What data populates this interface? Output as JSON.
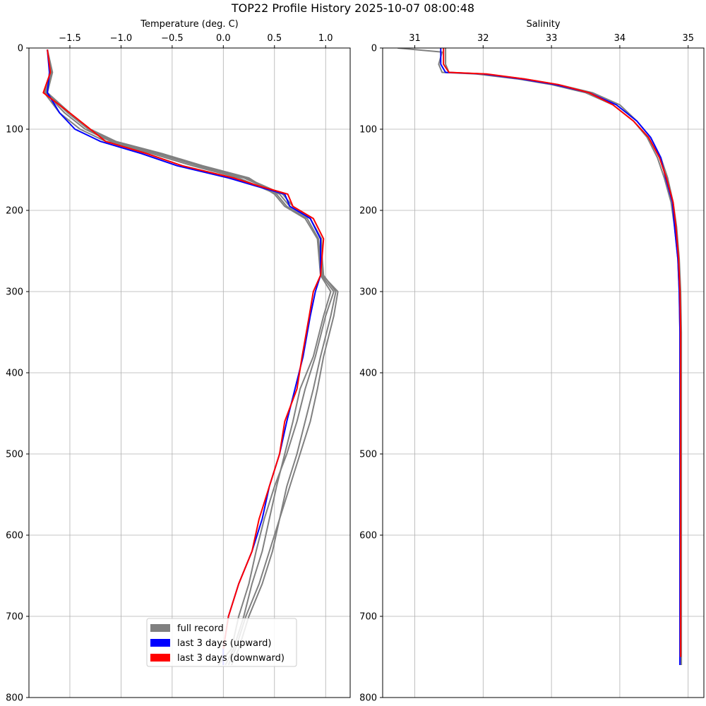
{
  "chart_data": {
    "type": "line",
    "title": "TOP22 Profile History 2025-10-07 08:00:48",
    "legend_placement": "lower-center of left panel",
    "legend": [
      {
        "label": "full record",
        "color": "#808080"
      },
      {
        "label": "last 3 days (upward)",
        "color": "#0000ff"
      },
      {
        "label": "last 3 days (downward)",
        "color": "#ff0000"
      }
    ],
    "panels": [
      {
        "name": "temperature",
        "xlabel": "Temperature (deg. C)",
        "xlim": [
          -1.9,
          1.24
        ],
        "ylim": [
          800,
          0
        ],
        "xticks": [
          -1.5,
          -1.0,
          -0.5,
          0.0,
          0.5,
          1.0
        ],
        "xtick_labels": [
          "−1.5",
          "−1.0",
          "−0.5",
          "0.0",
          "0.5",
          "1.0"
        ],
        "yticks": [
          0,
          100,
          200,
          300,
          400,
          500,
          600,
          700,
          800
        ],
        "ytick_labels": [
          "0",
          "100",
          "200",
          "300",
          "400",
          "500",
          "600",
          "700",
          "800"
        ],
        "grid": true,
        "series": [
          {
            "kind": "full",
            "color": "#808080",
            "x": [
              -1.72,
              -1.68,
              -1.74,
              -1.55,
              -1.35,
              -1.1,
              -0.65,
              -0.25,
              0.2,
              0.55,
              0.65,
              0.85,
              0.95,
              0.98,
              1.1,
              1.05,
              0.95,
              0.88,
              0.8,
              0.72,
              0.62,
              0.55,
              0.45,
              0.35,
              0.22,
              0.12,
              0.05
            ],
            "y": [
              2,
              30,
              55,
              80,
              100,
              115,
              130,
              145,
              160,
              180,
              195,
              210,
              235,
              280,
              300,
              330,
              380,
              420,
              460,
              500,
              540,
              580,
              620,
              660,
              700,
              740,
              760
            ]
          },
          {
            "kind": "full",
            "color": "#808080",
            "x": [
              -1.72,
              -1.67,
              -1.72,
              -1.5,
              -1.3,
              -1.05,
              -0.6,
              -0.2,
              0.25,
              0.5,
              0.6,
              0.8,
              0.92,
              0.95,
              1.05,
              0.98,
              0.88,
              0.75,
              0.68,
              0.6,
              0.52,
              0.45,
              0.38,
              0.28,
              0.2,
              0.1,
              0.02
            ],
            "y": [
              2,
              30,
              55,
              80,
              100,
              115,
              130,
              145,
              160,
              180,
              195,
              210,
              235,
              280,
              300,
              330,
              380,
              420,
              460,
              500,
              540,
              580,
              620,
              660,
              700,
              740,
              760
            ]
          },
          {
            "kind": "full",
            "color": "#808080",
            "x": [
              -1.72,
              -1.69,
              -1.75,
              -1.6,
              -1.4,
              -1.15,
              -0.7,
              -0.3,
              0.15,
              0.52,
              0.62,
              0.82,
              0.93,
              0.96,
              1.08,
              1.0,
              0.9,
              0.8,
              0.72,
              0.62,
              0.5,
              0.4,
              0.32,
              0.25,
              0.15,
              0.08,
              -0.05
            ],
            "y": [
              2,
              30,
              55,
              80,
              100,
              115,
              130,
              145,
              160,
              180,
              195,
              210,
              235,
              280,
              300,
              330,
              380,
              420,
              460,
              500,
              540,
              580,
              620,
              660,
              700,
              740,
              760
            ]
          },
          {
            "kind": "full",
            "color": "#808080",
            "x": [
              -1.72,
              -1.68,
              -1.73,
              -1.52,
              -1.32,
              -1.08,
              -0.62,
              -0.22,
              0.22,
              0.58,
              0.68,
              0.85,
              0.96,
              0.97,
              1.12,
              1.08,
              0.98,
              0.92,
              0.85,
              0.75,
              0.65,
              0.55,
              0.48,
              0.38,
              0.25,
              0.15,
              0.08
            ],
            "y": [
              2,
              30,
              55,
              80,
              100,
              115,
              130,
              145,
              160,
              180,
              195,
              210,
              235,
              280,
              300,
              330,
              380,
              420,
              460,
              500,
              540,
              580,
              620,
              660,
              700,
              740,
              760
            ]
          },
          {
            "kind": "up",
            "color": "#0000ff",
            "x": [
              -1.72,
              -1.7,
              -1.72,
              -1.6,
              -1.45,
              -1.2,
              -0.8,
              -0.45,
              0.05,
              0.32,
              0.6,
              0.65,
              0.85,
              0.95,
              0.95,
              0.9,
              0.85,
              0.78,
              0.7,
              0.62,
              0.55,
              0.45,
              0.38,
              0.28,
              0.15,
              0.05,
              0.0,
              0.0
            ],
            "y": [
              2,
              30,
              55,
              80,
              100,
              115,
              130,
              145,
              160,
              170,
              180,
              195,
              210,
              235,
              280,
              300,
              330,
              380,
              420,
              460,
              500,
              540,
              580,
              620,
              660,
              700,
              740,
              760
            ]
          },
          {
            "kind": "down",
            "color": "#ff0000",
            "x": [
              -1.72,
              -1.69,
              -1.76,
              -1.5,
              -1.3,
              -1.15,
              -0.75,
              -0.4,
              0.1,
              0.35,
              0.63,
              0.68,
              0.88,
              0.98,
              0.95,
              0.88,
              0.84,
              0.77,
              0.72,
              0.6,
              0.55,
              0.45,
              0.35,
              0.28,
              0.15,
              0.05,
              0.0
            ],
            "y": [
              2,
              30,
              55,
              80,
              100,
              115,
              130,
              145,
              160,
              170,
              180,
              195,
              210,
              235,
              280,
              300,
              330,
              380,
              420,
              460,
              500,
              540,
              580,
              620,
              660,
              700,
              740
            ]
          }
        ]
      },
      {
        "name": "salinity",
        "xlabel": "Salinity",
        "xlim": [
          30.53,
          35.23
        ],
        "ylim": [
          800,
          0
        ],
        "xticks": [
          31,
          32,
          33,
          34,
          35
        ],
        "xtick_labels": [
          "31",
          "32",
          "33",
          "34",
          "35"
        ],
        "yticks": [
          0,
          100,
          200,
          300,
          400,
          500,
          600,
          700,
          800
        ],
        "ytick_labels": [
          "0",
          "100",
          "200",
          "300",
          "400",
          "500",
          "600",
          "700",
          "800"
        ],
        "grid": true,
        "series": [
          {
            "kind": "full",
            "color": "#808080",
            "x": [
              30.75,
              31.4,
              31.35,
              31.4,
              31.9,
              32.5,
              33.0,
              33.5,
              33.9,
              34.2,
              34.4,
              34.55,
              34.65,
              34.75,
              34.8,
              34.85,
              34.87,
              34.88,
              34.88,
              34.88,
              34.88,
              34.88,
              34.88,
              34.88
            ],
            "y": [
              0,
              5,
              20,
              30,
              32,
              38,
              45,
              55,
              70,
              90,
              110,
              135,
              160,
              190,
              220,
              260,
              300,
              350,
              400,
              450,
              500,
              600,
              700,
              760
            ]
          },
          {
            "kind": "full",
            "color": "#808080",
            "x": [
              31.45,
              31.45,
              31.5,
              32.0,
              32.6,
              33.1,
              33.6,
              34.0,
              34.25,
              34.45,
              34.6,
              34.7,
              34.78,
              34.83,
              34.87,
              34.89,
              34.9,
              34.9,
              34.9,
              34.9,
              34.9,
              34.9,
              34.9
            ],
            "y": [
              0,
              20,
              30,
              32,
              38,
              45,
              55,
              70,
              90,
              110,
              135,
              160,
              190,
              220,
              260,
              300,
              350,
              400,
              450,
              500,
              600,
              700,
              760
            ]
          },
          {
            "kind": "up",
            "color": "#0000ff",
            "x": [
              31.38,
              31.38,
              31.45,
              32.0,
              32.55,
              33.05,
              33.55,
              33.95,
              34.25,
              34.45,
              34.6,
              34.67,
              34.77,
              34.8,
              34.85,
              34.87,
              34.88,
              34.88,
              34.88,
              34.88,
              34.88,
              34.88,
              34.88
            ],
            "y": [
              0,
              20,
              30,
              32,
              38,
              45,
              55,
              70,
              90,
              110,
              135,
              160,
              190,
              220,
              260,
              300,
              350,
              400,
              450,
              500,
              600,
              700,
              760
            ]
          },
          {
            "kind": "down",
            "color": "#ff0000",
            "x": [
              31.42,
              31.42,
              31.5,
              32.05,
              32.6,
              33.1,
              33.55,
              33.9,
              34.2,
              34.42,
              34.58,
              34.68,
              34.78,
              34.82,
              34.86,
              34.88,
              34.89,
              34.89,
              34.89,
              34.89,
              34.89,
              34.89,
              34.89
            ],
            "y": [
              0,
              20,
              30,
              32,
              38,
              45,
              55,
              70,
              90,
              110,
              135,
              160,
              190,
              220,
              260,
              300,
              350,
              400,
              450,
              500,
              600,
              700,
              750
            ]
          }
        ]
      }
    ]
  }
}
